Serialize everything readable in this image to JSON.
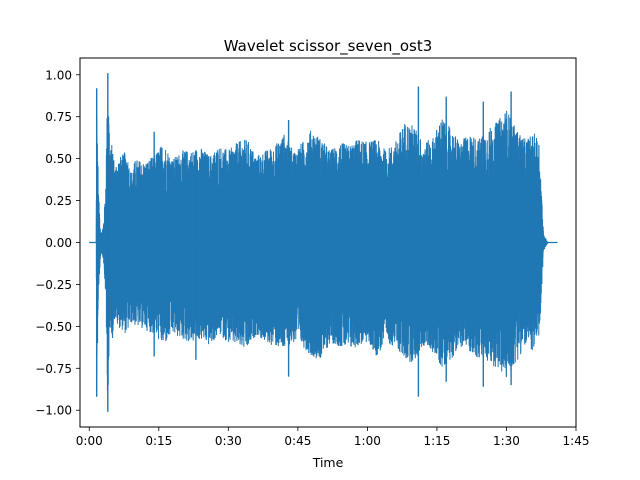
{
  "chart_data": {
    "type": "line",
    "title": "Wavelet scissor_seven_ost3",
    "xlabel": "Time",
    "ylabel": "",
    "xlim": [
      -2,
      105
    ],
    "ylim": [
      -1.1,
      1.1
    ],
    "x_ticks": [
      {
        "value": 0,
        "label": "0:00"
      },
      {
        "value": 15,
        "label": "0:15"
      },
      {
        "value": 30,
        "label": "0:30"
      },
      {
        "value": 45,
        "label": "0:45"
      },
      {
        "value": 60,
        "label": "1:00"
      },
      {
        "value": 75,
        "label": "1:15"
      },
      {
        "value": 90,
        "label": "1:30"
      },
      {
        "value": 105,
        "label": "1:45"
      }
    ],
    "y_ticks": [
      {
        "value": 1.0,
        "label": "1.00"
      },
      {
        "value": 0.75,
        "label": "0.75"
      },
      {
        "value": 0.5,
        "label": "0.50"
      },
      {
        "value": 0.25,
        "label": "0.25"
      },
      {
        "value": 0.0,
        "label": "0.00"
      },
      {
        "value": -0.25,
        "label": "−0.25"
      },
      {
        "value": -0.5,
        "label": "−0.50"
      },
      {
        "value": -0.75,
        "label": "−0.75"
      },
      {
        "value": -1.0,
        "label": "−1.00"
      }
    ],
    "series": [
      {
        "color": "#1f77b4",
        "envelope_x": [
          0,
          1.5,
          1.6,
          2.0,
          2.5,
          3.0,
          3.5,
          4.0,
          4.5,
          5.0,
          5.5,
          6.0,
          7.0,
          8.0,
          9.0,
          10,
          12,
          14,
          16,
          18,
          20,
          22,
          24,
          26,
          28,
          30,
          32,
          34,
          36,
          38,
          40,
          42,
          44,
          46,
          48,
          50,
          52,
          54,
          56,
          58,
          60,
          62,
          64,
          66,
          68,
          70,
          72,
          74,
          76,
          78,
          80,
          82,
          84,
          86,
          88,
          90,
          92,
          94,
          96,
          97,
          97.5,
          98,
          99,
          100,
          101
        ],
        "envelope_upper": [
          0.0,
          0.0,
          0.92,
          0.3,
          0.05,
          0.1,
          0.3,
          1.01,
          0.55,
          0.6,
          0.45,
          0.5,
          0.52,
          0.55,
          0.42,
          0.5,
          0.48,
          0.52,
          0.6,
          0.5,
          0.55,
          0.55,
          0.57,
          0.52,
          0.58,
          0.55,
          0.6,
          0.62,
          0.52,
          0.55,
          0.58,
          0.65,
          0.55,
          0.6,
          0.68,
          0.62,
          0.55,
          0.6,
          0.58,
          0.62,
          0.6,
          0.62,
          0.55,
          0.6,
          0.72,
          0.7,
          0.6,
          0.62,
          0.75,
          0.68,
          0.6,
          0.65,
          0.62,
          0.68,
          0.72,
          0.8,
          0.68,
          0.62,
          0.65,
          0.62,
          0.35,
          0.05,
          0.0,
          0.0,
          0.0
        ],
        "envelope_lower": [
          0.0,
          0.0,
          -0.92,
          -0.3,
          -0.05,
          -0.1,
          -0.3,
          -1.01,
          -0.5,
          -0.58,
          -0.45,
          -0.5,
          -0.52,
          -0.55,
          -0.48,
          -0.5,
          -0.52,
          -0.55,
          -0.62,
          -0.55,
          -0.58,
          -0.6,
          -0.58,
          -0.62,
          -0.55,
          -0.6,
          -0.62,
          -0.65,
          -0.55,
          -0.6,
          -0.62,
          -0.65,
          -0.6,
          -0.62,
          -0.68,
          -0.7,
          -0.6,
          -0.62,
          -0.65,
          -0.62,
          -0.6,
          -0.68,
          -0.6,
          -0.62,
          -0.7,
          -0.72,
          -0.62,
          -0.65,
          -0.75,
          -0.7,
          -0.62,
          -0.65,
          -0.7,
          -0.72,
          -0.75,
          -0.82,
          -0.72,
          -0.62,
          -0.65,
          -0.6,
          -0.35,
          -0.05,
          0.0,
          0.0,
          0.0
        ],
        "spikes": [
          {
            "x": 1.6,
            "top": 0.92,
            "bottom": -0.92
          },
          {
            "x": 4.0,
            "top": 1.01,
            "bottom": -1.01
          },
          {
            "x": 14.0,
            "top": 0.66,
            "bottom": -0.68
          },
          {
            "x": 23.0,
            "top": 0.55,
            "bottom": -0.7
          },
          {
            "x": 43.0,
            "top": 0.73,
            "bottom": -0.8
          },
          {
            "x": 71.0,
            "top": 0.93,
            "bottom": -0.92
          },
          {
            "x": 77.0,
            "top": 0.87,
            "bottom": -0.83
          },
          {
            "x": 85.0,
            "top": 0.84,
            "bottom": -0.86
          },
          {
            "x": 91.0,
            "top": 0.9,
            "bottom": -0.85
          }
        ]
      }
    ],
    "grid": false,
    "legend": "none"
  }
}
